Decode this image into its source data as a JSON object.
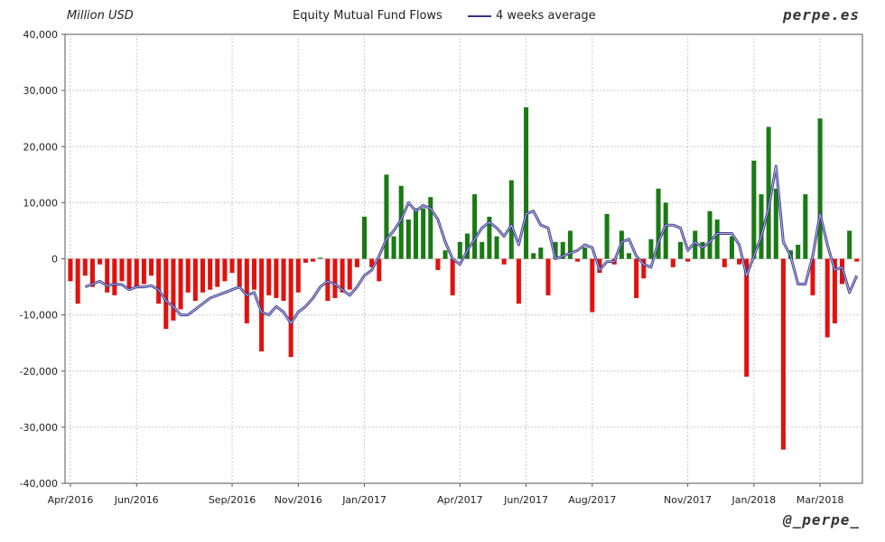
{
  "header": {
    "units": "Million USD",
    "title": "Equity Mutual Fund Flows",
    "legend_label": "4 weeks average",
    "brand": "perpe.es",
    "handle": "@_perpe_"
  },
  "colors": {
    "positive": "#1a7a14",
    "negative": "#e0120f",
    "average": "#33338a",
    "grid": "#c8c8c8",
    "axis": "#555555"
  },
  "chart_data": {
    "type": "bar",
    "title": "Equity Mutual Fund Flows",
    "ylabel": "Million USD",
    "ylim": [
      -40000,
      40000
    ],
    "y_ticks": [
      40000,
      30000,
      20000,
      10000,
      0,
      -10000,
      -20000,
      -30000,
      -40000
    ],
    "y_tick_labels": [
      "40,000",
      "30,000",
      "20,000",
      "10,000",
      "0",
      "-10,000",
      "-20,000",
      "-30,000",
      "-40,000"
    ],
    "x_tick_labels": [
      "Apr/2016",
      "Jun/2016",
      "Sep/2016",
      "Nov/2016",
      "Jan/2017",
      "Apr/2017",
      "Jun/2017",
      "Aug/2017",
      "Nov/2017",
      "Jan/2018",
      "Mar/2018"
    ],
    "x_tick_weeks": [
      0,
      9,
      22,
      31,
      40,
      53,
      62,
      71,
      84,
      93,
      102
    ],
    "grid": true,
    "legend_position": "top",
    "frequency": "weekly",
    "series": [
      {
        "type": "bar",
        "values": [
          -4000,
          -8000,
          -3000,
          -5000,
          -1000,
          -6000,
          -6500,
          -4000,
          -5500,
          -5000,
          -4500,
          -3000,
          -8000,
          -12500,
          -11000,
          -9000,
          -6000,
          -7500,
          -6000,
          -5500,
          -5000,
          -4000,
          -2500,
          -5000,
          -11500,
          -5500,
          -16500,
          -6500,
          -7000,
          -7500,
          -17500,
          -6000,
          -700,
          -500,
          200,
          -7500,
          -7000,
          -6000,
          -5500,
          -1500,
          7500,
          -1500,
          -4000,
          15000,
          4000,
          13000,
          7000,
          9000,
          9000,
          11000,
          -2000,
          1500,
          -6500,
          3000,
          4500,
          11500,
          3000,
          7500,
          4000,
          -1000,
          14000,
          -8000,
          27000,
          1000,
          2000,
          -6500,
          3000,
          3000,
          5000,
          -500,
          2000,
          -9500,
          -2500,
          8000,
          -1000,
          5000,
          1000,
          -7000,
          -3500,
          3500,
          12500,
          10000,
          -1500,
          3000,
          -500,
          5000,
          3000,
          8500,
          7000,
          -1500,
          4000,
          -1000,
          -21000,
          17500,
          11500,
          23500,
          12500,
          -34000,
          1500,
          2500,
          11500,
          -6500,
          25000,
          -14000,
          -11500,
          -4500,
          5000,
          -500
        ]
      },
      {
        "type": "line",
        "name": "4 weeks average",
        "values": [
          null,
          null,
          -5000,
          -4500,
          -4000,
          -4800,
          -4500,
          -4600,
          -5500,
          -5000,
          -5000,
          -4800,
          -5500,
          -7500,
          -8500,
          -10000,
          -10000,
          -9000,
          -8000,
          -7000,
          -6500,
          -6000,
          -5500,
          -5000,
          -6500,
          -6000,
          -9500,
          -10000,
          -8500,
          -9500,
          -11500,
          -9500,
          -8500,
          -7000,
          -5000,
          -4000,
          -4500,
          -5500,
          -6500,
          -5000,
          -3000,
          -2000,
          500,
          3500,
          5000,
          7000,
          10000,
          8500,
          9500,
          9000,
          7000,
          3000,
          0,
          -1000,
          1500,
          3500,
          5500,
          6500,
          5500,
          4000,
          6000,
          2500,
          8000,
          8500,
          6000,
          5500,
          0,
          500,
          1000,
          1500,
          2500,
          2000,
          -2000,
          -500,
          -500,
          3000,
          3500,
          500,
          -1000,
          -1500,
          3000,
          6000,
          6000,
          5500,
          1500,
          3000,
          2000,
          3000,
          4500,
          4500,
          4500,
          2500,
          -3000,
          500,
          4000,
          9000,
          16500,
          3000,
          500,
          -4500,
          -4500,
          500,
          8000,
          2500,
          -2000,
          -1500,
          -6000,
          -3000
        ]
      }
    ]
  }
}
